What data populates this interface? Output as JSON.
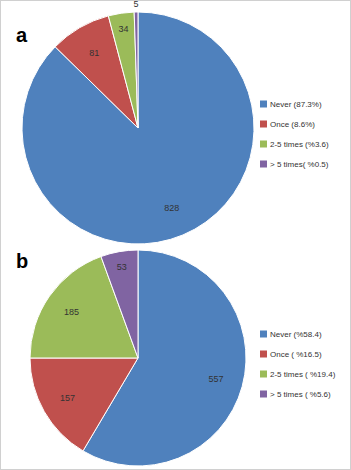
{
  "chart_data": [
    {
      "type": "pie",
      "title": "a",
      "categories": [
        "Never (87.3%)",
        "Once (8.6%)",
        "2-5 times (%3.6)",
        "> 5 times( %0.5)"
      ],
      "values": [
        828,
        81,
        34,
        5
      ],
      "colors": [
        "#4f81bd",
        "#c0504d",
        "#9bbb59",
        "#8064a2"
      ],
      "data_labels": true,
      "legend": "right"
    },
    {
      "type": "pie",
      "title": "b",
      "categories": [
        "Never (%58.4)",
        "Once ( %16.5)",
        "2-5 times ( %19.4)",
        "> 5 times ( %5.6)"
      ],
      "values": [
        557,
        157,
        185,
        53
      ],
      "colors": [
        "#4f81bd",
        "#c0504d",
        "#9bbb59",
        "#8064a2"
      ],
      "data_labels": true,
      "legend": "right"
    }
  ]
}
